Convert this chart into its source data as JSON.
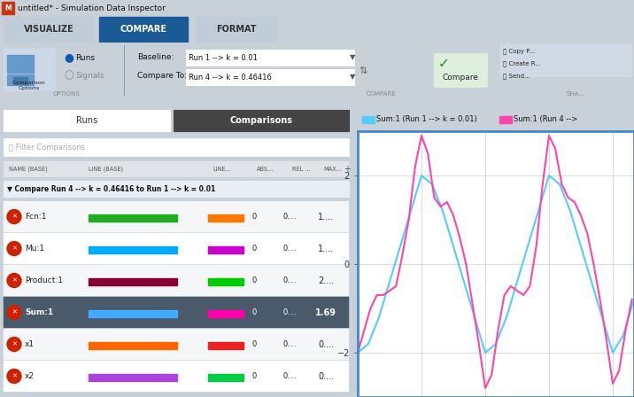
{
  "title": "untitled* - Simulation Data Inspector",
  "tab_active": "COMPARE",
  "tabs": [
    "VISUALIZE",
    "COMPARE",
    "FORMAT"
  ],
  "baseline_value": "Run 1 --> k = 0.01",
  "compare_to_value": "Run 4 --> k = 0.46416",
  "radio_runs": "Runs",
  "radio_signals": "Signals",
  "button_runs": "Runs",
  "button_comparisons": "Comparisons",
  "filter_placeholder": "Filter Comparisons",
  "col_headers": [
    "NAME (BASE)",
    "LINE (BASE)",
    "LINE...",
    "ABS...",
    "REL ...",
    "MAX..."
  ],
  "compare_header": "Compare Run 4 --> k = 0.46416 to Run 1 --> k = 0.01",
  "rows": [
    {
      "name": "Fcn:1",
      "line_base_color": "#22aa22",
      "line_comp_color": "#ff7700",
      "abs": "0",
      "rel": "0....",
      "max": "1...."
    },
    {
      "name": "Mu:1",
      "line_base_color": "#00aaff",
      "line_comp_color": "#cc00cc",
      "abs": "0",
      "rel": "0....",
      "max": "1...."
    },
    {
      "name": "Product:1",
      "line_base_color": "#880033",
      "line_comp_color": "#00cc00",
      "abs": "0",
      "rel": "0....",
      "max": "2...."
    },
    {
      "name": "Sum:1",
      "line_base_color": "#44aaff",
      "line_comp_color": "#ff00aa",
      "abs": "0",
      "rel": "0....",
      "max": "1.69",
      "selected": true
    },
    {
      "name": "x1",
      "line_base_color": "#ff6600",
      "line_comp_color": "#ee2222",
      "abs": "0",
      "rel": "0....",
      "max": "0...."
    },
    {
      "name": "x2",
      "line_base_color": "#aa44dd",
      "line_comp_color": "#00cc44",
      "abs": "0",
      "rel": "0....",
      "max": "0...."
    }
  ],
  "legend_entries": [
    {
      "label": "Sum:1 (Run 1 --> k = 0.01)",
      "color": "#55ccff"
    },
    {
      "label": "Sum:1 (Run 4 -->",
      "color": "#ff44aa"
    }
  ],
  "plot_xlim": [
    0,
    13
  ],
  "plot_ylim": [
    -3,
    3
  ],
  "plot_xticks": [
    0,
    3,
    6,
    9,
    12
  ],
  "plot_yticks": [
    -2,
    0,
    2
  ],
  "blue_x": [
    0,
    0.5,
    1.0,
    1.5,
    2.0,
    2.5,
    3.0,
    3.5,
    4.0,
    4.5,
    5.0,
    5.5,
    6.0,
    6.5,
    7.0,
    7.5,
    8.0,
    8.5,
    9.0,
    9.5,
    10.0,
    10.5,
    11.0,
    11.5,
    12.0,
    12.5,
    13.0
  ],
  "blue_y": [
    -2.0,
    -1.8,
    -1.2,
    -0.4,
    0.4,
    1.2,
    2.0,
    1.8,
    1.2,
    0.4,
    -0.4,
    -1.2,
    -2.0,
    -1.8,
    -1.2,
    -0.4,
    0.4,
    1.2,
    2.0,
    1.8,
    1.2,
    0.4,
    -0.4,
    -1.2,
    -2.0,
    -1.6,
    -0.8
  ],
  "pink_x": [
    0,
    0.3,
    0.6,
    0.9,
    1.2,
    1.5,
    1.8,
    2.1,
    2.4,
    2.7,
    3.0,
    3.3,
    3.6,
    3.9,
    4.2,
    4.5,
    4.8,
    5.1,
    5.4,
    5.7,
    6.0,
    6.3,
    6.6,
    6.9,
    7.2,
    7.5,
    7.8,
    8.1,
    8.4,
    8.7,
    9.0,
    9.3,
    9.6,
    9.9,
    10.2,
    10.5,
    10.8,
    11.1,
    11.4,
    11.7,
    12.0,
    12.3,
    12.6,
    12.9
  ],
  "pink_y": [
    -2.0,
    -1.5,
    -1.0,
    -0.7,
    -0.7,
    -0.6,
    -0.5,
    0.2,
    1.0,
    2.2,
    2.9,
    2.5,
    1.5,
    1.3,
    1.4,
    1.1,
    0.6,
    0.0,
    -0.9,
    -1.8,
    -2.8,
    -2.5,
    -1.5,
    -0.7,
    -0.5,
    -0.6,
    -0.7,
    -0.5,
    0.4,
    1.8,
    2.9,
    2.6,
    1.8,
    1.5,
    1.4,
    1.1,
    0.7,
    0.0,
    -0.8,
    -1.7,
    -2.7,
    -2.4,
    -1.5,
    -0.8
  ],
  "bg_main": "#c8d0d8",
  "bg_titlebar": "#d8dde3",
  "bg_tab_bar": "#b8c8d8",
  "bg_tab_active": "#1a5a96",
  "bg_tab_inactive": "#c0ccd8",
  "bg_options": "#e0e8f0",
  "bg_panel": "#f0f2f4",
  "bg_selected_row": "#4a5a6a",
  "bg_white": "#ffffff",
  "border_blue": "#4488cc",
  "color_sep": "#8899aa"
}
